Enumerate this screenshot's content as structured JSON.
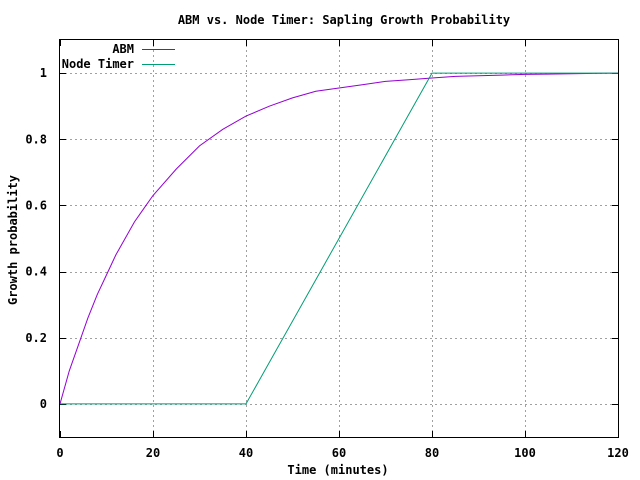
{
  "chart_data": {
    "type": "line",
    "title": "ABM vs. Node Timer: Sapling Growth Probability",
    "xlabel": "Time (minutes)",
    "ylabel": "Growth probability",
    "xlim": [
      0,
      120
    ],
    "ylim": [
      -0.1,
      1.1
    ],
    "x_ticks": [
      0,
      20,
      40,
      60,
      80,
      100,
      120
    ],
    "y_ticks": [
      0,
      0.2,
      0.4,
      0.6,
      0.8,
      1
    ],
    "x_tick_labels": [
      "0",
      "20",
      "40",
      "60",
      "80",
      "100",
      "120"
    ],
    "y_tick_labels": [
      "0",
      "0.2",
      "0.4",
      "0.6",
      "0.8",
      "1"
    ],
    "grid": true,
    "legend_position": "top-left",
    "series": [
      {
        "name": "ABM",
        "color": "#9400d3",
        "x": [
          0,
          2,
          4,
          6,
          8,
          10,
          12,
          14,
          16,
          18,
          20,
          25,
          30,
          35,
          40,
          45,
          50,
          55,
          60,
          65,
          70,
          75,
          80,
          85,
          90,
          95,
          100,
          105,
          110,
          115,
          120
        ],
        "y": [
          0,
          0.1,
          0.18,
          0.26,
          0.33,
          0.39,
          0.45,
          0.5,
          0.55,
          0.59,
          0.63,
          0.71,
          0.78,
          0.83,
          0.87,
          0.9,
          0.925,
          0.945,
          0.955,
          0.965,
          0.975,
          0.98,
          0.985,
          0.99,
          0.992,
          0.994,
          0.996,
          0.997,
          0.998,
          0.999,
          1.0
        ]
      },
      {
        "name": "Node Timer",
        "color": "#009e73",
        "x": [
          0,
          40,
          80,
          120
        ],
        "y": [
          0,
          0,
          1,
          1
        ]
      }
    ]
  }
}
